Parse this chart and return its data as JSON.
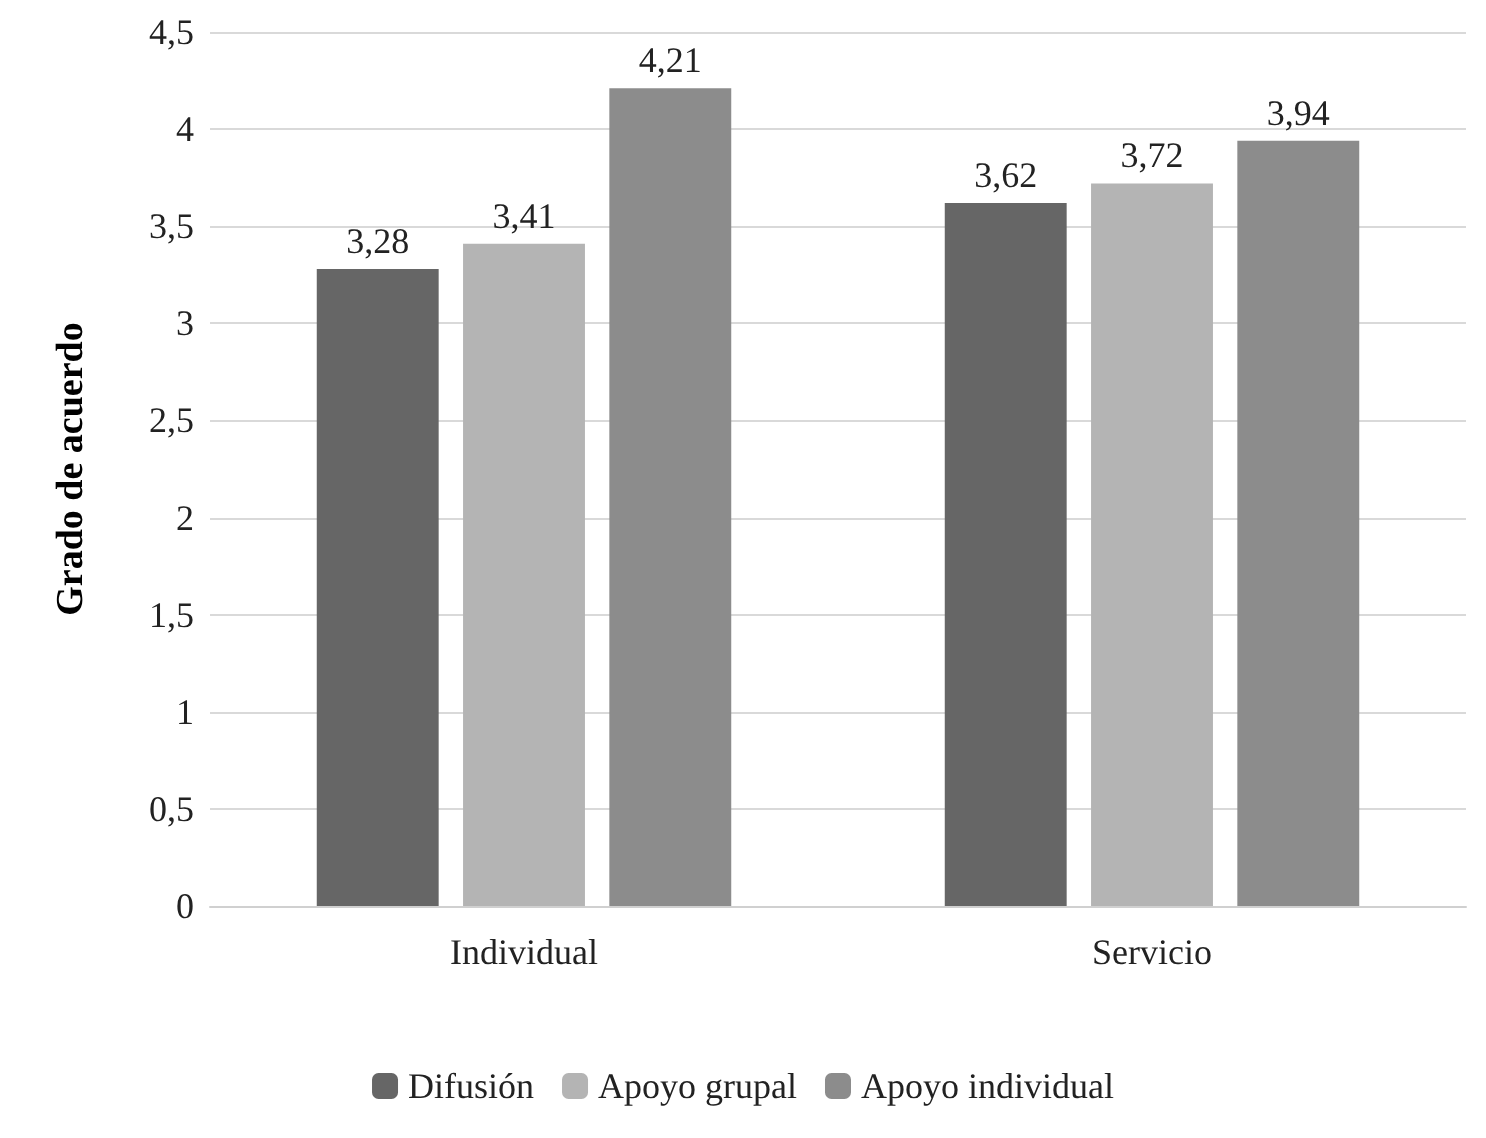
{
  "chart_data": {
    "type": "bar",
    "ylabel": "Grado de acuerdo",
    "categories": [
      "Individual",
      "Servicio"
    ],
    "series": [
      {
        "name": "Difusión",
        "color": "#666666",
        "values": [
          3.28,
          3.62
        ],
        "value_labels": [
          "3,28",
          "3,62"
        ]
      },
      {
        "name": "Apoyo grupal",
        "color": "#b4b4b4",
        "values": [
          3.41,
          3.72
        ],
        "value_labels": [
          "3,41",
          "3,72"
        ]
      },
      {
        "name": "Apoyo individual",
        "color": "#8c8c8c",
        "values": [
          4.21,
          3.94
        ],
        "value_labels": [
          "4,21",
          "3,94"
        ]
      }
    ],
    "ylim": [
      0,
      4.5
    ],
    "yticks": [
      0,
      {
        "value": 0.5,
        "label": "0,5"
      },
      1,
      {
        "value": 1.5,
        "label": "1,5"
      },
      2,
      {
        "value": 2.5,
        "label": "2,5"
      },
      3,
      {
        "value": 3.5,
        "label": "3,5"
      },
      4,
      {
        "value": 4.5,
        "label": "4,5"
      }
    ],
    "grid": "y",
    "legend": "bottom"
  }
}
